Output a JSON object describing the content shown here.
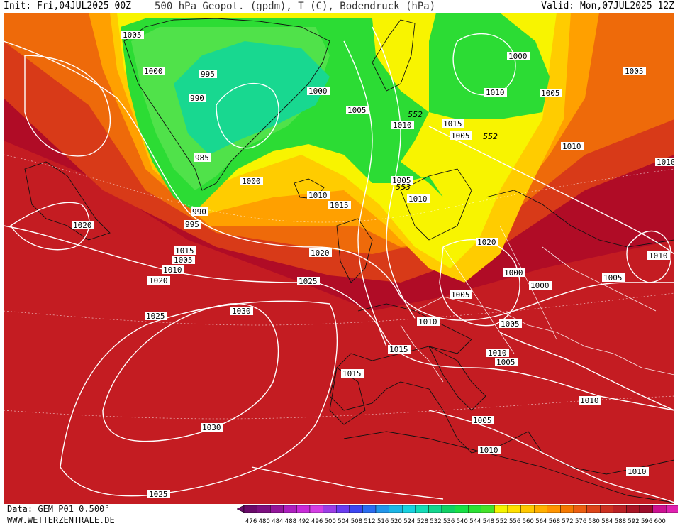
{
  "header": {
    "init": "Init: Fri,04JUL2025 00Z",
    "title": "500 hPa Geopot. (gpdm), T (C), Bodendruck (hPa)",
    "valid": "Valid: Mon,07JUL2025 12Z"
  },
  "footer": {
    "model": "Data: GEM P01 0.500°",
    "site": "WWW.WETTERZENTRALE.DE"
  },
  "legend": {
    "ticks": [
      "476",
      "480",
      "484",
      "488",
      "492",
      "496",
      "500",
      "504",
      "508",
      "512",
      "516",
      "520",
      "524",
      "528",
      "532",
      "536",
      "540",
      "544",
      "548",
      "552",
      "556",
      "560",
      "564",
      "568",
      "572",
      "576",
      "580",
      "584",
      "588",
      "592",
      "596",
      "600"
    ],
    "colors": [
      "#6a0a6a",
      "#7d0f80",
      "#93159a",
      "#ad1fbe",
      "#c82ad8",
      "#d43ee4",
      "#9b3de6",
      "#6a3cf0",
      "#3c46f2",
      "#2a6cf0",
      "#2296ea",
      "#1cb6e6",
      "#18d2e0",
      "#14dcb8",
      "#12d68e",
      "#10d064",
      "#18e046",
      "#2ae034",
      "#44e22a",
      "#f4f400",
      "#ffe000",
      "#ffc800",
      "#ffb000",
      "#ff9400",
      "#f47800",
      "#ec5e10",
      "#dc4418",
      "#cc3020",
      "#ba2024",
      "#a81424",
      "#9c0c2a",
      "#cc1090",
      "#e020b0"
    ]
  },
  "map": {
    "colors": {
      "far_red": "#b00c26",
      "red": "#c41c22",
      "red_orange": "#d83a18",
      "orange": "#ee6a0a",
      "amber": "#ffa000",
      "yellow_orange": "#ffcc00",
      "yellow": "#f8f400",
      "green": "#2cdc34",
      "green_light": "#50e24a",
      "cyan_green": "#18d890"
    },
    "contour_labels": [
      "1005",
      "1000",
      "995",
      "990",
      "985",
      "990",
      "995",
      "1000",
      "1000",
      "1005",
      "1010",
      "1005",
      "1000",
      "1005",
      "1005",
      "1010",
      "1010",
      "1010",
      "1015",
      "1020",
      "1015",
      "1005",
      "1010",
      "1020",
      "1025",
      "1020",
      "1025",
      "1030",
      "1030",
      "1025",
      "1015",
      "1010",
      "1015",
      "1020",
      "1000",
      "1000",
      "1005",
      "1005",
      "1010",
      "1005",
      "1005",
      "1010",
      "1010",
      "1005",
      "1010",
      "1010",
      "1010",
      "1010",
      "1005",
      "1010",
      "1015"
    ],
    "height_labels": [
      "552",
      "552",
      "553"
    ]
  }
}
